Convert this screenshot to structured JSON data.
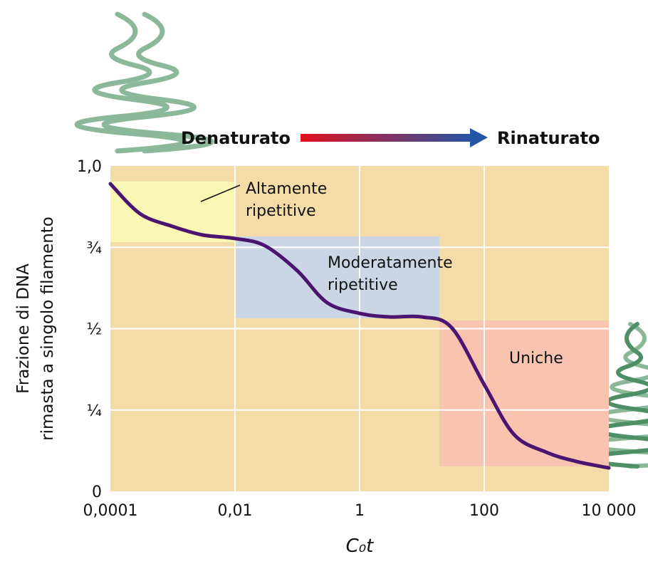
{
  "chart_data": {
    "type": "line",
    "x_label": "C₀t",
    "y_label": [
      "Frazione di DNA",
      "rimasta a singolo filamento"
    ],
    "arrow_labels": [
      {
        "text": "Denaturato",
        "color": "#e3101d"
      },
      {
        "text": "Rinaturato",
        "color": "#2456a6"
      }
    ],
    "x_scale": "log",
    "background": "#f3dca7",
    "grid": true,
    "xlim": [
      0.0001,
      10000
    ],
    "ylim": [
      0,
      1
    ],
    "xticks": [
      {
        "value": 0.0001,
        "label": "0,0001"
      },
      {
        "value": 0.01,
        "label": "0,01"
      },
      1,
      100,
      {
        "value": 10000,
        "label": "10 000"
      }
    ],
    "yticks": [
      0,
      {
        "value": 0.25,
        "label": "¼"
      },
      {
        "value": 0.5,
        "label": "½"
      },
      {
        "value": 0.75,
        "label": "¾"
      },
      {
        "value": 1,
        "label": "1,0"
      }
    ],
    "regions": [
      {
        "label": [
          "Altamente",
          "ripetitive"
        ],
        "color": "#fbf6b4",
        "x": [
          0.0001,
          0.01
        ],
        "y": [
          0.766,
          0.952
        ]
      },
      {
        "label": [
          "Moderatamente",
          "ripetitive"
        ],
        "color": "#cad6e6",
        "x": [
          0.01,
          19
        ],
        "y": [
          0.532,
          0.783
        ]
      },
      {
        "label": [
          "Uniche"
        ],
        "color": "#f8c4b0",
        "x": [
          19,
          10000
        ],
        "y": [
          0.077,
          0.525
        ]
      }
    ],
    "series": [
      {
        "color": "#4b1470",
        "x": [
          0.0001,
          0.0003,
          0.001,
          0.003,
          0.01,
          0.03,
          0.1,
          0.3,
          1,
          3,
          10,
          30,
          100,
          300,
          1000,
          3000,
          10000
        ],
        "values": [
          0.945,
          0.853,
          0.814,
          0.788,
          0.777,
          0.755,
          0.678,
          0.58,
          0.547,
          0.536,
          0.536,
          0.503,
          0.328,
          0.175,
          0.12,
          0.092,
          0.072
        ]
      }
    ]
  }
}
